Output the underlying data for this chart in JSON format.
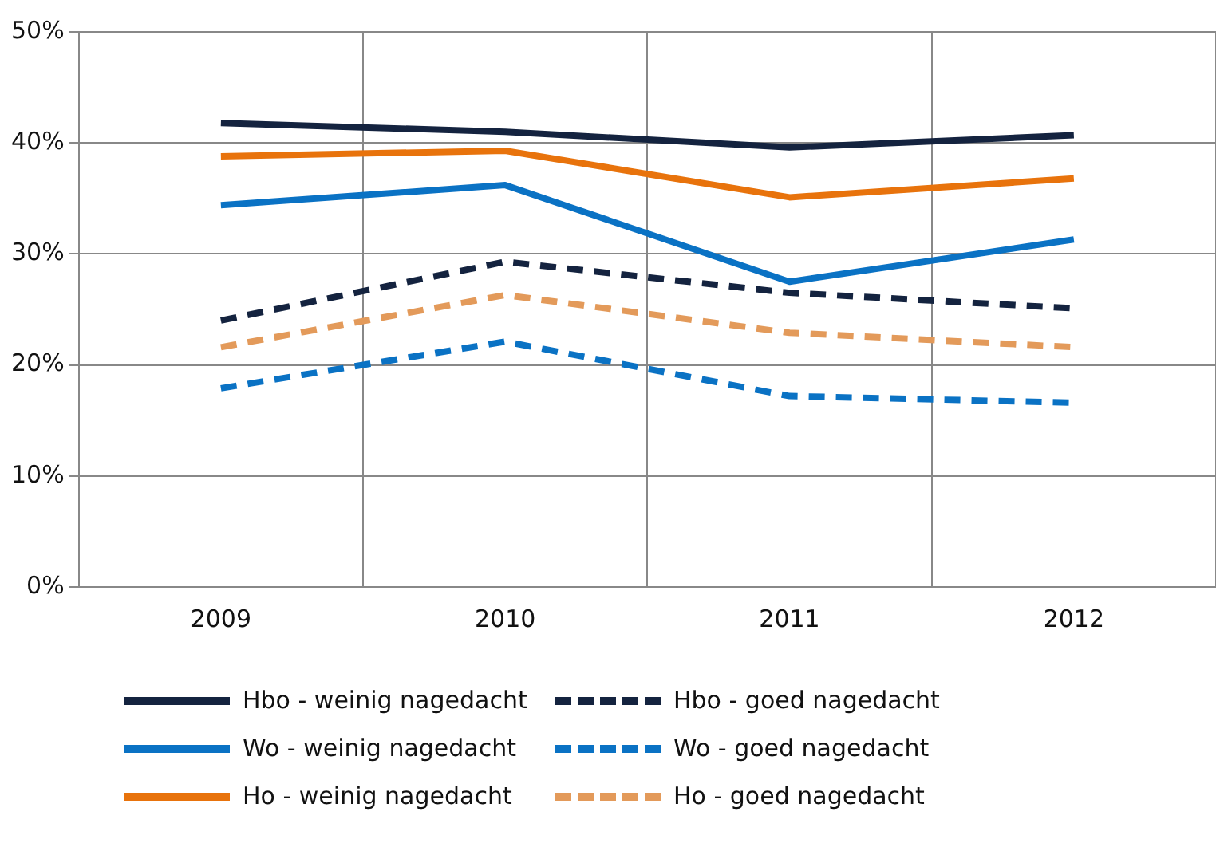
{
  "chart_data": {
    "type": "line",
    "categories": [
      "2009",
      "2010",
      "2011",
      "2012"
    ],
    "series": [
      {
        "name": "Hbo - weinig nagedacht",
        "color": "#14233f",
        "line_style": "solid",
        "values": [
          41.8,
          41.0,
          39.6,
          40.7
        ]
      },
      {
        "name": "Hbo - goed nagedacht",
        "color": "#14233f",
        "line_style": "dashed",
        "values": [
          24.0,
          29.3,
          26.5,
          25.1
        ]
      },
      {
        "name": "Wo - weinig nagedacht",
        "color": "#0a72c4",
        "line_style": "solid",
        "values": [
          34.4,
          36.2,
          27.5,
          31.3
        ]
      },
      {
        "name": "Wo - goed nagedacht",
        "color": "#0a72c4",
        "line_style": "dashed",
        "values": [
          17.9,
          22.1,
          17.2,
          16.6
        ]
      },
      {
        "name": "Ho - weinig nagedacht",
        "color": "#e8730c",
        "line_style": "solid",
        "values": [
          38.8,
          39.3,
          35.1,
          36.8
        ]
      },
      {
        "name": "Ho - goed nagedacht",
        "color": "#e39a5a",
        "line_style": "dashed",
        "values": [
          21.6,
          26.3,
          22.9,
          21.6
        ]
      }
    ],
    "ylim": [
      0,
      50
    ],
    "yticks": [
      {
        "value": 0,
        "label": "0%"
      },
      {
        "value": 10,
        "label": "10%"
      },
      {
        "value": 20,
        "label": "20%"
      },
      {
        "value": 30,
        "label": "30%"
      },
      {
        "value": 40,
        "label": "40%"
      },
      {
        "value": 50,
        "label": "50%"
      }
    ],
    "grid": true,
    "legend": "bottom",
    "marker": "none"
  }
}
